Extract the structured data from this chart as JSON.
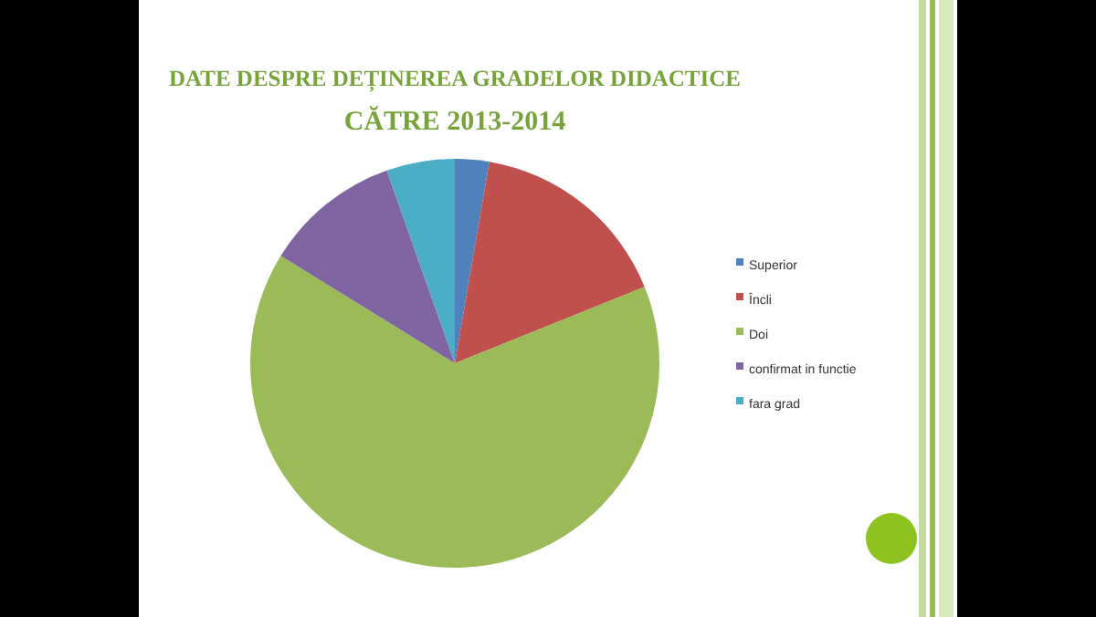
{
  "chart_data": {
    "type": "pie",
    "title": "DATE DESPRE DEȚINEREA GRADELOR DIDACTICE\nCĂTRE 2013-2014",
    "categories": [
      "Superior",
      "Încli",
      "Doi",
      "confirmat in functie",
      "fara grad"
    ],
    "values": [
      2.7,
      16.2,
      64.9,
      10.8,
      5.4
    ],
    "colors": [
      "#4f81bd",
      "#c0504d",
      "#9bbb59",
      "#8064a2",
      "#4bacc6"
    ],
    "legend": "right"
  }
}
